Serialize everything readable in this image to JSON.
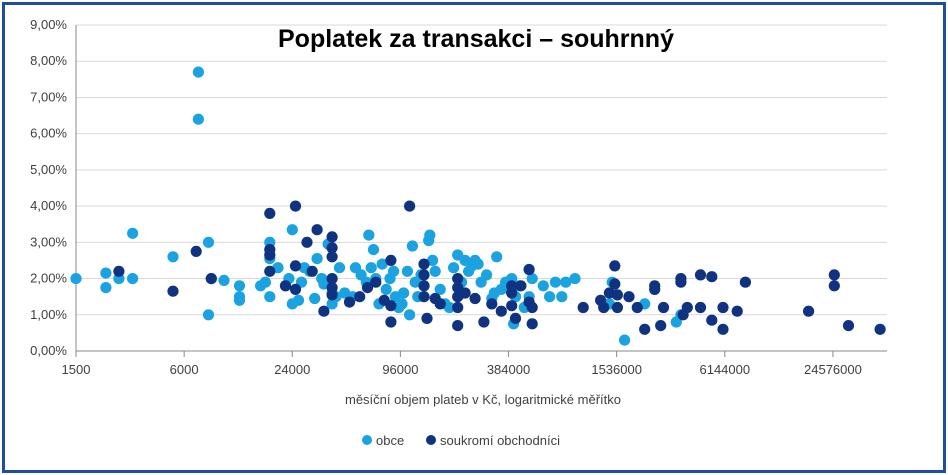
{
  "chart_data": {
    "type": "scatter",
    "title": "Poplatek za transakci – souhrnný",
    "xlabel": "měsíční objem plateb v Kč, logaritmické měřítko",
    "ylabel": "",
    "x_scale": "log2",
    "xlim": [
      1500,
      49152000
    ],
    "ylim": [
      0,
      9
    ],
    "x_ticks": [
      "1500",
      "6000",
      "24000",
      "96000",
      "384000",
      "1536000",
      "6144000",
      "24576000"
    ],
    "x_tick_values": [
      1500,
      6000,
      24000,
      96000,
      384000,
      1536000,
      6144000,
      24576000
    ],
    "y_ticks": [
      "0,00%",
      "1,00%",
      "2,00%",
      "3,00%",
      "4,00%",
      "5,00%",
      "6,00%",
      "7,00%",
      "8,00%",
      "9,00%"
    ],
    "y_tick_values": [
      0,
      1,
      2,
      3,
      4,
      5,
      6,
      7,
      8,
      9
    ],
    "grid": true,
    "legend_position": "bottom",
    "series": [
      {
        "name": "obce",
        "color": "#1aa3e0",
        "points": [
          [
            1500,
            2.0
          ],
          [
            2200,
            2.15
          ],
          [
            2200,
            1.75
          ],
          [
            2600,
            2.0
          ],
          [
            3100,
            2.0
          ],
          [
            3100,
            3.25
          ],
          [
            5200,
            2.6
          ],
          [
            7200,
            7.7
          ],
          [
            7200,
            6.4
          ],
          [
            8200,
            1.0
          ],
          [
            8200,
            3.0
          ],
          [
            8500,
            2.0
          ],
          [
            10000,
            1.95
          ],
          [
            12200,
            1.8
          ],
          [
            12200,
            1.4
          ],
          [
            12200,
            1.5
          ],
          [
            16000,
            1.8
          ],
          [
            17000,
            1.9
          ],
          [
            18000,
            1.5
          ],
          [
            18000,
            3.0
          ],
          [
            18000,
            2.55
          ],
          [
            20000,
            2.3
          ],
          [
            22000,
            1.8
          ],
          [
            23000,
            2.0
          ],
          [
            24000,
            1.3
          ],
          [
            24000,
            3.35
          ],
          [
            26000,
            1.4
          ],
          [
            27000,
            1.9
          ],
          [
            28000,
            2.3
          ],
          [
            30000,
            2.2
          ],
          [
            32000,
            1.45
          ],
          [
            33000,
            2.55
          ],
          [
            35000,
            2.0
          ],
          [
            36000,
            1.85
          ],
          [
            38000,
            2.95
          ],
          [
            40000,
            1.6
          ],
          [
            40000,
            1.3
          ],
          [
            42000,
            1.5
          ],
          [
            44000,
            2.3
          ],
          [
            47000,
            1.6
          ],
          [
            52000,
            1.5
          ],
          [
            54000,
            2.3
          ],
          [
            58000,
            2.1
          ],
          [
            62000,
            1.9
          ],
          [
            64000,
            3.2
          ],
          [
            66000,
            2.3
          ],
          [
            68000,
            2.8
          ],
          [
            70000,
            2.0
          ],
          [
            73000,
            1.3
          ],
          [
            76000,
            2.4
          ],
          [
            80000,
            1.7
          ],
          [
            84000,
            2.0
          ],
          [
            88000,
            2.2
          ],
          [
            90000,
            1.5
          ],
          [
            94000,
            1.2
          ],
          [
            98000,
            1.3
          ],
          [
            100000,
            1.6
          ],
          [
            105000,
            2.2
          ],
          [
            108000,
            1.0
          ],
          [
            112000,
            2.9
          ],
          [
            116000,
            1.9
          ],
          [
            120000,
            1.5
          ],
          [
            125000,
            2.1
          ],
          [
            130000,
            1.8
          ],
          [
            138000,
            3.05
          ],
          [
            140000,
            3.2
          ],
          [
            145000,
            2.5
          ],
          [
            150000,
            2.2
          ],
          [
            160000,
            1.7
          ],
          [
            170000,
            1.3
          ],
          [
            180000,
            1.2
          ],
          [
            190000,
            2.3
          ],
          [
            200000,
            2.65
          ],
          [
            210000,
            1.9
          ],
          [
            215000,
            1.6
          ],
          [
            220000,
            2.5
          ],
          [
            230000,
            2.2
          ],
          [
            240000,
            2.35
          ],
          [
            250000,
            2.5
          ],
          [
            260000,
            2.4
          ],
          [
            270000,
            1.9
          ],
          [
            290000,
            2.1
          ],
          [
            310000,
            1.45
          ],
          [
            320000,
            1.6
          ],
          [
            330000,
            2.6
          ],
          [
            350000,
            1.7
          ],
          [
            370000,
            1.9
          ],
          [
            390000,
            1.7
          ],
          [
            400000,
            2.0
          ],
          [
            410000,
            0.75
          ],
          [
            420000,
            1.5
          ],
          [
            440000,
            1.8
          ],
          [
            470000,
            1.2
          ],
          [
            500000,
            1.5
          ],
          [
            520000,
            2.0
          ],
          [
            600000,
            1.8
          ],
          [
            650000,
            1.5
          ],
          [
            700000,
            1.9
          ],
          [
            760000,
            1.5
          ],
          [
            800000,
            1.9
          ],
          [
            900000,
            2.0
          ],
          [
            1400000,
            1.3
          ],
          [
            1450000,
            1.9
          ],
          [
            1700000,
            0.3
          ],
          [
            2200000,
            1.3
          ],
          [
            3300000,
            0.8
          ],
          [
            3500000,
            1.0
          ]
        ]
      },
      {
        "name": "soukromí obchodníci",
        "color": "#0f3380",
        "points": [
          [
            2600,
            2.2
          ],
          [
            5200,
            1.65
          ],
          [
            7000,
            2.75
          ],
          [
            8500,
            2.0
          ],
          [
            18000,
            3.8
          ],
          [
            18000,
            2.8
          ],
          [
            18000,
            2.65
          ],
          [
            18000,
            2.2
          ],
          [
            22000,
            1.8
          ],
          [
            25000,
            4.0
          ],
          [
            25000,
            2.35
          ],
          [
            25000,
            1.7
          ],
          [
            29000,
            3.0
          ],
          [
            31000,
            2.2
          ],
          [
            33000,
            3.35
          ],
          [
            36000,
            1.1
          ],
          [
            40000,
            3.15
          ],
          [
            40000,
            2.85
          ],
          [
            40000,
            2.6
          ],
          [
            40000,
            2.0
          ],
          [
            40000,
            1.75
          ],
          [
            40000,
            1.55
          ],
          [
            50000,
            1.35
          ],
          [
            57000,
            1.5
          ],
          [
            63000,
            1.75
          ],
          [
            70000,
            1.9
          ],
          [
            78000,
            1.4
          ],
          [
            85000,
            2.5
          ],
          [
            85000,
            1.25
          ],
          [
            85000,
            0.8
          ],
          [
            108000,
            4.0
          ],
          [
            130000,
            2.4
          ],
          [
            130000,
            2.1
          ],
          [
            130000,
            1.8
          ],
          [
            130000,
            1.5
          ],
          [
            135000,
            0.9
          ],
          [
            150000,
            1.45
          ],
          [
            160000,
            1.3
          ],
          [
            200000,
            2.0
          ],
          [
            200000,
            1.75
          ],
          [
            200000,
            1.5
          ],
          [
            200000,
            1.2
          ],
          [
            200000,
            0.7
          ],
          [
            220000,
            1.6
          ],
          [
            250000,
            1.45
          ],
          [
            280000,
            0.8
          ],
          [
            310000,
            1.3
          ],
          [
            350000,
            1.1
          ],
          [
            400000,
            1.8
          ],
          [
            400000,
            1.6
          ],
          [
            400000,
            1.25
          ],
          [
            420000,
            0.9
          ],
          [
            450000,
            1.8
          ],
          [
            500000,
            2.25
          ],
          [
            500000,
            1.35
          ],
          [
            520000,
            1.2
          ],
          [
            520000,
            0.75
          ],
          [
            1000000,
            1.2
          ],
          [
            1250000,
            1.4
          ],
          [
            1300000,
            1.2
          ],
          [
            1400000,
            1.6
          ],
          [
            1500000,
            1.85
          ],
          [
            1500000,
            2.35
          ],
          [
            1550000,
            1.55
          ],
          [
            1550000,
            1.2
          ],
          [
            1800000,
            1.5
          ],
          [
            2000000,
            1.2
          ],
          [
            2200000,
            0.6
          ],
          [
            2500000,
            1.8
          ],
          [
            2500000,
            1.7
          ],
          [
            2700000,
            0.7
          ],
          [
            2800000,
            1.2
          ],
          [
            3500000,
            2.0
          ],
          [
            3500000,
            1.9
          ],
          [
            3600000,
            1.0
          ],
          [
            3800000,
            1.2
          ],
          [
            4500000,
            2.1
          ],
          [
            4500000,
            1.2
          ],
          [
            5200000,
            2.05
          ],
          [
            5200000,
            0.85
          ],
          [
            6000000,
            1.2
          ],
          [
            6000000,
            0.6
          ],
          [
            7200000,
            1.1
          ],
          [
            8000000,
            1.9
          ],
          [
            18000000,
            1.1
          ],
          [
            25000000,
            2.1
          ],
          [
            25000000,
            1.8
          ],
          [
            30000000,
            0.7
          ],
          [
            45000000,
            0.6
          ]
        ]
      }
    ]
  }
}
